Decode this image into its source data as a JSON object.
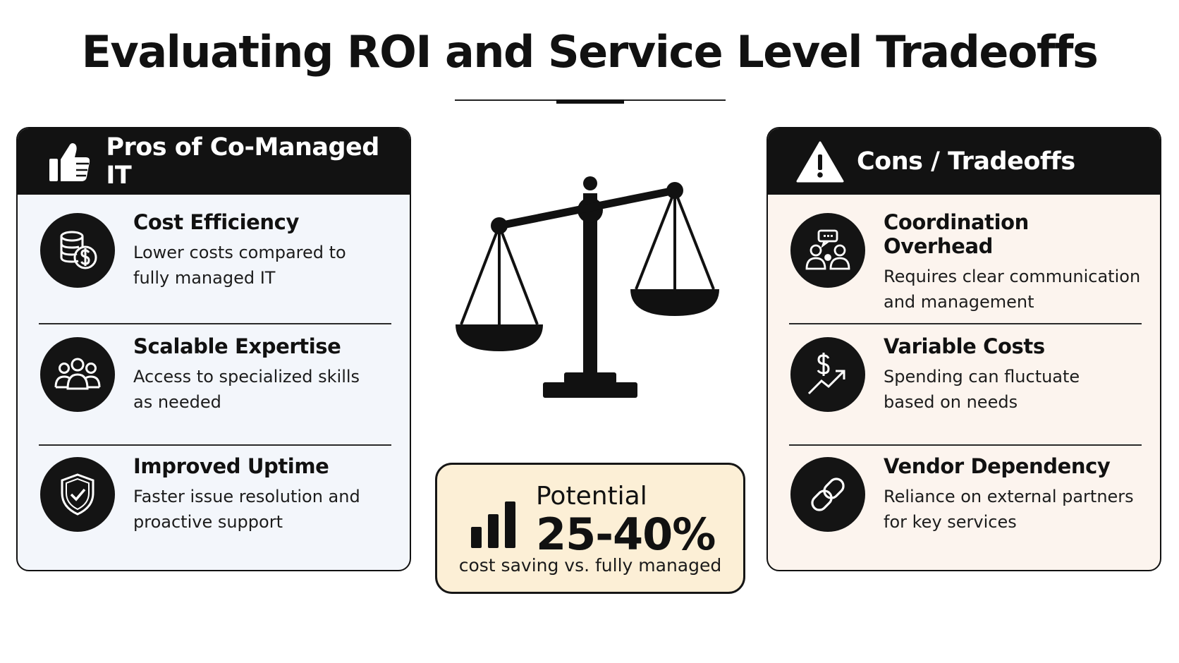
{
  "title": "Evaluating ROI and Service Level Tradeoffs",
  "pros": {
    "header": "Pros of Co-Managed IT",
    "header_icon": "thumbs-up-icon",
    "items": [
      {
        "icon": "coins-dollar-icon",
        "title": "Cost Efficiency",
        "desc1": "Lower costs compared to",
        "desc2": "fully managed IT"
      },
      {
        "icon": "team-icon",
        "title": "Scalable Expertise",
        "desc1": "Access to specialized skills",
        "desc2": "as needed"
      },
      {
        "icon": "shield-check-icon",
        "title": "Improved Uptime",
        "desc1": "Faster issue resolution and",
        "desc2": "proactive support"
      }
    ]
  },
  "cons": {
    "header": "Cons / Tradeoffs",
    "header_icon": "warning-icon",
    "items": [
      {
        "icon": "people-chat-icon",
        "title": "Coordination Overhead",
        "desc1": "Requires clear communication",
        "desc2": "and management"
      },
      {
        "icon": "dollar-trend-icon",
        "title": "Variable Costs",
        "desc1": "Spending can fluctuate",
        "desc2": "based on needs"
      },
      {
        "icon": "link-icon",
        "title": "Vendor Dependency",
        "desc1": "Reliance on external partners",
        "desc2": "for key services"
      }
    ]
  },
  "center": {
    "icon": "balance-scale-icon"
  },
  "stat": {
    "icon": "bar-chart-icon",
    "label": "Potential",
    "value": "25-40%",
    "caption": "cost saving vs. fully managed"
  },
  "colors": {
    "header_bg": "#121212",
    "pros_bg": "#f3f6fb",
    "cons_bg": "#fcf4ee",
    "stat_bg": "#fcefd6"
  }
}
